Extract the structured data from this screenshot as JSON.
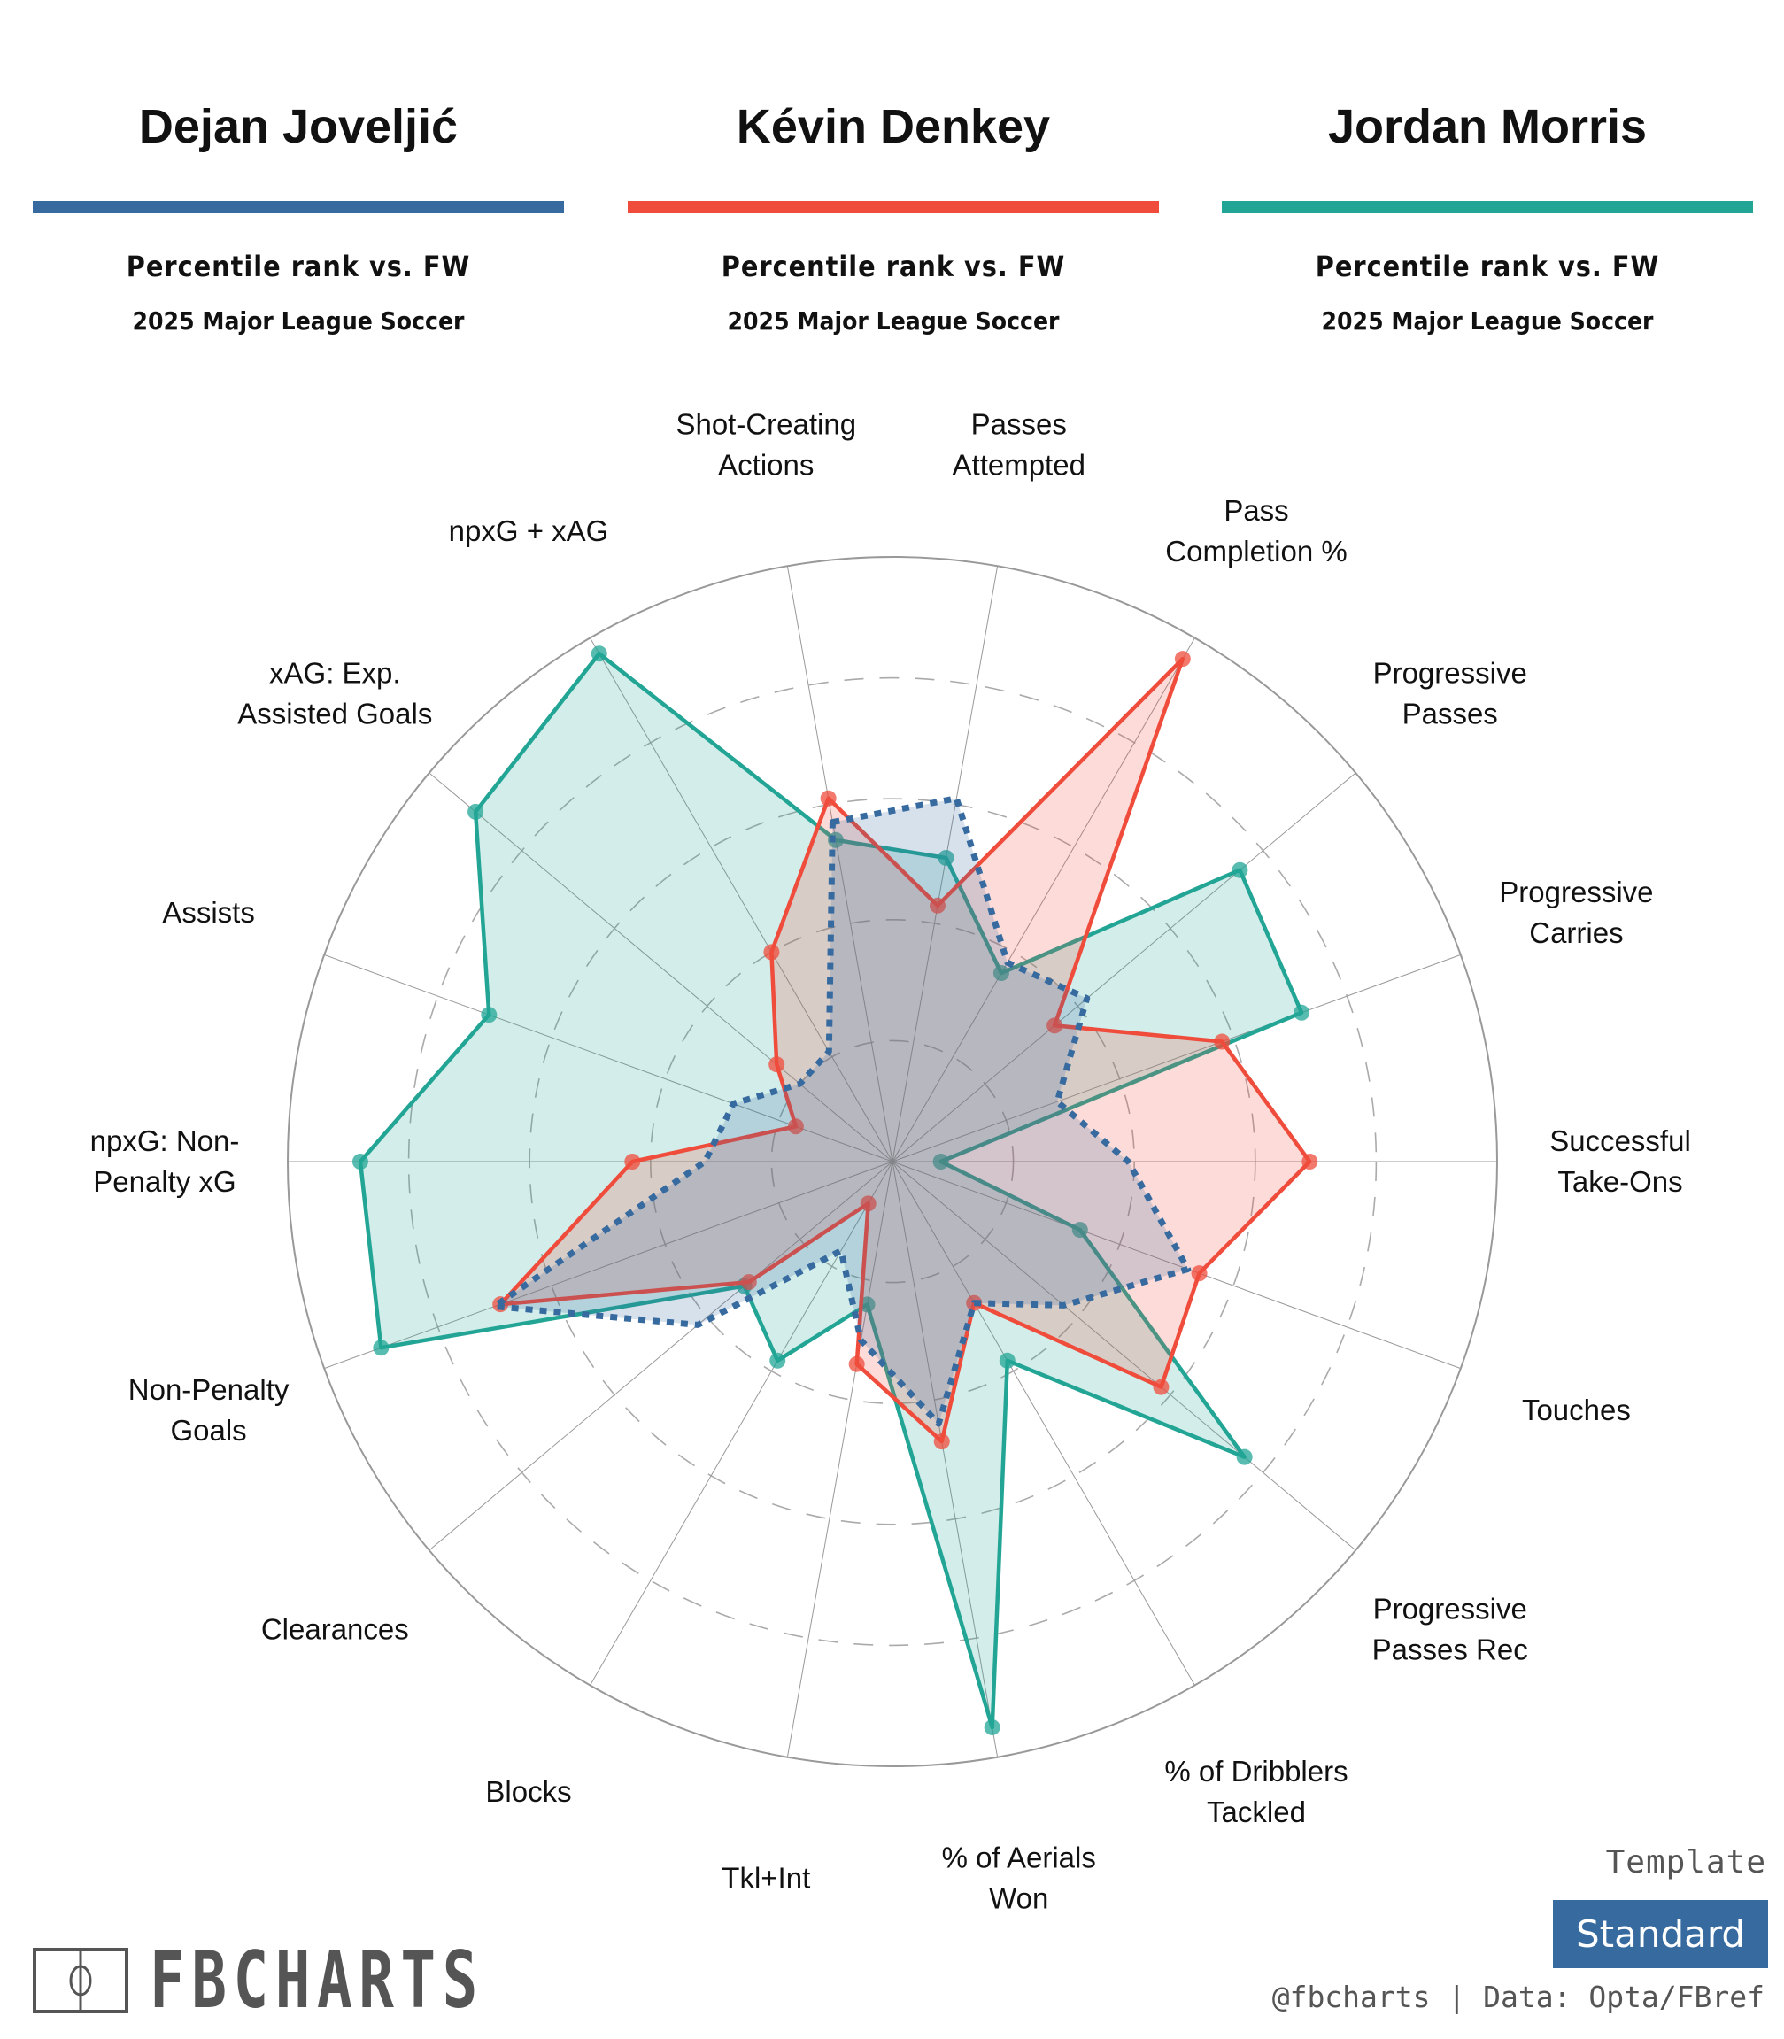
{
  "players": [
    {
      "name": "Dejan Joveljić",
      "subtitle": "Percentile rank vs. FW",
      "competition": "2025 Major League Soccer",
      "color": "#376ba0"
    },
    {
      "name": "Kévin Denkey",
      "subtitle": "Percentile rank vs. FW",
      "competition": "2025 Major League Soccer",
      "color": "#ef4c3c"
    },
    {
      "name": "Jordan Morris",
      "subtitle": "Percentile rank vs. FW",
      "competition": "2025 Major League Soccer",
      "color": "#22a595"
    }
  ],
  "chart_data": {
    "type": "radar",
    "axis_range": [
      0,
      100
    ],
    "rings": [
      20,
      40,
      60,
      80,
      100
    ],
    "categories": [
      [
        "Shot-Creating",
        "Actions"
      ],
      [
        "Passes",
        "Attempted"
      ],
      [
        "Pass",
        "Completion %"
      ],
      [
        "Progressive",
        "Passes"
      ],
      [
        "Progressive",
        "Carries"
      ],
      [
        "Successful",
        "Take-Ons"
      ],
      [
        "Touches"
      ],
      [
        "Progressive",
        "Passes Rec"
      ],
      [
        "% of Dribblers",
        "Tackled"
      ],
      [
        "% of Aerials",
        "Won"
      ],
      [
        "Tkl+Int"
      ],
      [
        "Blocks"
      ],
      [
        "Clearances"
      ],
      [
        "Non-Penalty",
        "Goals"
      ],
      [
        "npxG: Non-",
        "Penalty xG"
      ],
      [
        "Assists"
      ],
      [
        "xAG: Exp.",
        "Assisted Goals"
      ],
      [
        "npxG + xAG"
      ]
    ],
    "series": [
      {
        "name": "Jordan Morris",
        "color": "#22a595",
        "style": "solid",
        "values": [
          54,
          51,
          36,
          75,
          72,
          8,
          33,
          76,
          38,
          95,
          24,
          38,
          32,
          90,
          88,
          71,
          90,
          97
        ]
      },
      {
        "name": "Kévin Denkey",
        "color": "#ef4c3c",
        "style": "solid",
        "values": [
          61,
          43,
          96,
          35,
          58,
          69,
          54,
          58,
          27,
          47,
          34,
          8,
          31,
          69,
          43,
          17,
          25,
          40
        ]
      },
      {
        "name": "Dejan Joveljić",
        "color": "#376ba0",
        "style": "dotted",
        "values": [
          57,
          61,
          38,
          42,
          29,
          39,
          52,
          37,
          27,
          44,
          30,
          17,
          42,
          70,
          31,
          28,
          20,
          21
        ]
      }
    ]
  },
  "footer": {
    "logo_text": "FBCHARTS",
    "template_label": "Template",
    "template_value": "Standard",
    "credit": "@fbcharts | Data: Opta/FBref"
  }
}
